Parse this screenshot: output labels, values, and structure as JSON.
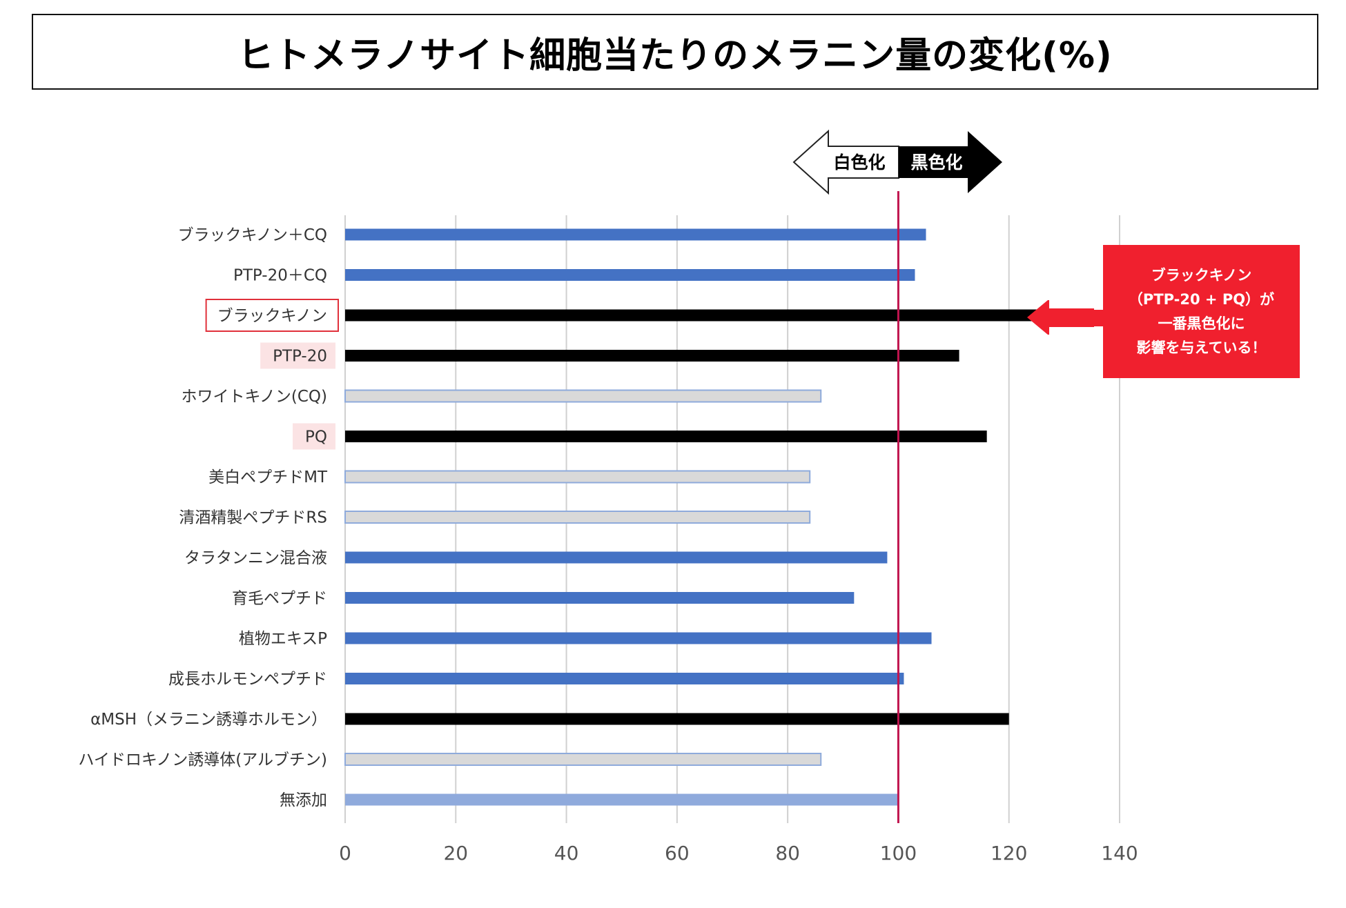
{
  "title": "ヒトメラノサイト細胞当たりのメラニン量の変化(%)",
  "direction_labels": {
    "whitening": "白色化",
    "darkening": "黒色化"
  },
  "callout": {
    "lines": [
      "ブラックキノン",
      "（PTP-20 + PQ）が",
      "一番黒色化に",
      "影響を与えている！"
    ]
  },
  "colors": {
    "blue": "#4472c4",
    "black": "#000000",
    "grey": "#d9d9d9",
    "grey_border": "#8eaadb",
    "light_blue": "#8faadc",
    "reference_line": "#c0144e",
    "highlight_box_border": "#e0303a",
    "highlight_fill": "#fbe3e4",
    "callout_red": "#f0202e"
  },
  "chart_data": {
    "type": "bar",
    "orientation": "horizontal",
    "title": "ヒトメラノサイト細胞当たりのメラニン量の変化(%)",
    "xlabel": "",
    "ylabel": "",
    "xlim": [
      0,
      140
    ],
    "xticks": [
      0,
      20,
      40,
      60,
      80,
      100,
      120,
      140
    ],
    "grid": true,
    "reference_value": 100,
    "categories": [
      "ブラックキノン＋CQ",
      "PTP-20＋CQ",
      "ブラックキノン",
      "PTP-20",
      "ホワイトキノン(CQ)",
      "PQ",
      "美白ペプチドMT",
      "清酒精製ペプチドRS",
      "タラタンニン混合液",
      "育毛ペプチド",
      "植物エキスP",
      "成長ホルモンペプチド",
      "αMSH（メラニン誘導ホルモン）",
      "ハイドロキノン誘導体(アルブチン)",
      "無添加"
    ],
    "values": [
      105,
      103,
      126,
      111,
      86,
      116,
      84,
      84,
      98,
      92,
      106,
      101,
      120,
      86,
      100
    ],
    "bar_colors": [
      "blue",
      "blue",
      "black",
      "black",
      "grey",
      "black",
      "grey",
      "grey",
      "blue",
      "blue",
      "blue",
      "blue",
      "black",
      "grey",
      "light_blue"
    ],
    "label_style": [
      "plain",
      "plain",
      "boxed",
      "shaded",
      "plain",
      "shaded",
      "plain",
      "plain",
      "plain",
      "plain",
      "plain",
      "plain",
      "plain",
      "plain",
      "plain"
    ]
  }
}
